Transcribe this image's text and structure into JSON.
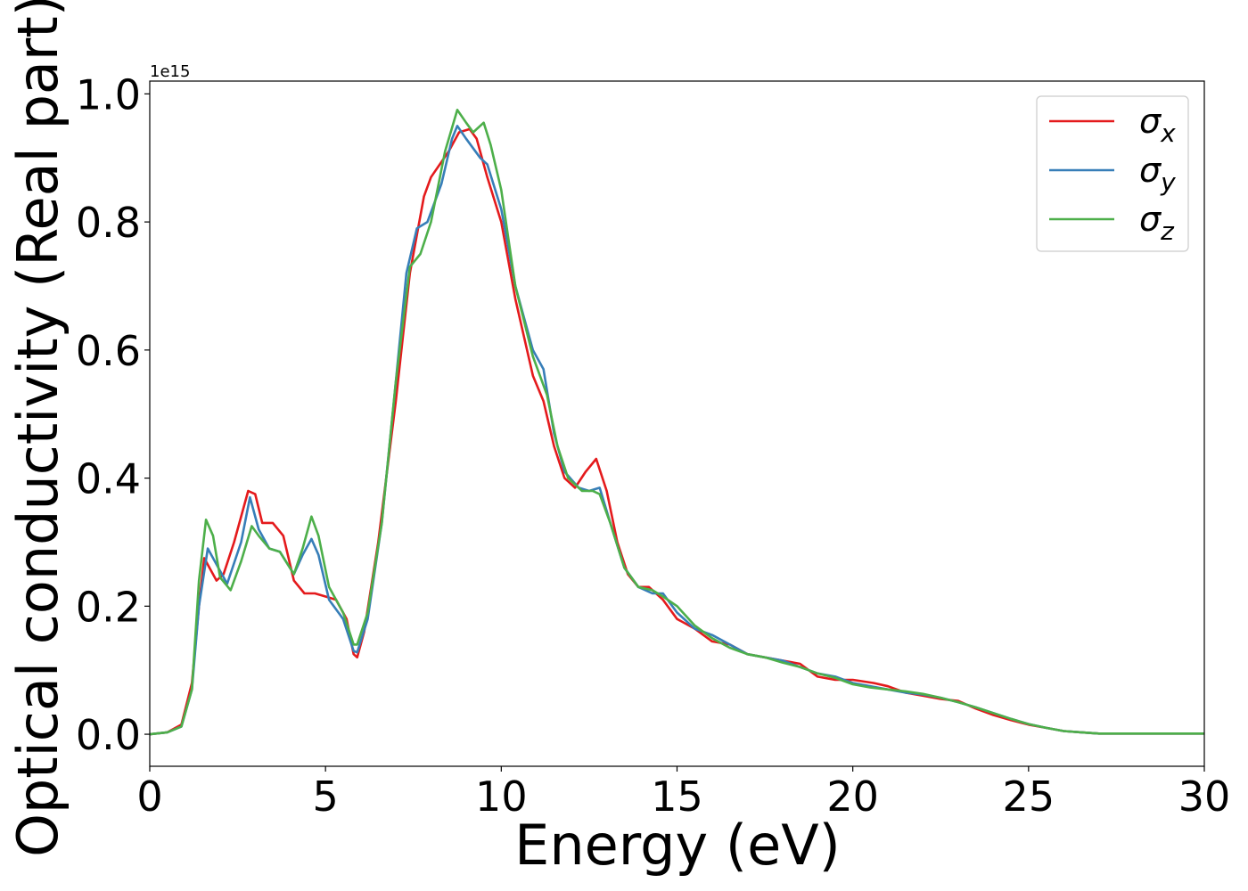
{
  "chart_data": {
    "type": "line",
    "xlabel": "Energy (eV)",
    "ylabel": "Optical conductivity (Real part)",
    "y_offset_label": "1e15",
    "xlim": [
      0,
      30
    ],
    "ylim": [
      -0.05,
      1.02
    ],
    "xticks": [
      "0",
      "5",
      "10",
      "15",
      "20",
      "25",
      "30"
    ],
    "yticks": [
      "0.0",
      "0.2",
      "0.4",
      "0.6",
      "0.8",
      "1.0"
    ],
    "grid": false,
    "legend_position": "top-right",
    "series": [
      {
        "name": "σx",
        "symbol": "σ",
        "subscript": "x",
        "color": "#e41a1c",
        "points": [
          [
            0,
            0
          ],
          [
            0.5,
            0.003
          ],
          [
            0.9,
            0.015
          ],
          [
            1.2,
            0.08
          ],
          [
            1.4,
            0.2
          ],
          [
            1.55,
            0.275
          ],
          [
            1.7,
            0.26
          ],
          [
            1.9,
            0.24
          ],
          [
            2.1,
            0.25
          ],
          [
            2.4,
            0.3
          ],
          [
            2.8,
            0.38
          ],
          [
            3.0,
            0.375
          ],
          [
            3.2,
            0.33
          ],
          [
            3.5,
            0.33
          ],
          [
            3.8,
            0.31
          ],
          [
            4.1,
            0.24
          ],
          [
            4.4,
            0.22
          ],
          [
            4.7,
            0.22
          ],
          [
            5.0,
            0.215
          ],
          [
            5.3,
            0.21
          ],
          [
            5.6,
            0.18
          ],
          [
            5.8,
            0.125
          ],
          [
            5.9,
            0.12
          ],
          [
            6.1,
            0.16
          ],
          [
            6.5,
            0.3
          ],
          [
            7.0,
            0.52
          ],
          [
            7.4,
            0.72
          ],
          [
            7.8,
            0.84
          ],
          [
            8.0,
            0.87
          ],
          [
            8.5,
            0.91
          ],
          [
            8.8,
            0.94
          ],
          [
            9.1,
            0.945
          ],
          [
            9.3,
            0.93
          ],
          [
            9.6,
            0.87
          ],
          [
            10.0,
            0.8
          ],
          [
            10.4,
            0.68
          ],
          [
            10.9,
            0.56
          ],
          [
            11.2,
            0.52
          ],
          [
            11.5,
            0.45
          ],
          [
            11.8,
            0.4
          ],
          [
            12.1,
            0.385
          ],
          [
            12.4,
            0.41
          ],
          [
            12.7,
            0.43
          ],
          [
            13.0,
            0.38
          ],
          [
            13.3,
            0.3
          ],
          [
            13.6,
            0.25
          ],
          [
            13.9,
            0.23
          ],
          [
            14.2,
            0.23
          ],
          [
            14.6,
            0.21
          ],
          [
            15.0,
            0.18
          ],
          [
            15.5,
            0.165
          ],
          [
            16.0,
            0.145
          ],
          [
            16.5,
            0.14
          ],
          [
            17.0,
            0.125
          ],
          [
            17.5,
            0.12
          ],
          [
            18.0,
            0.115
          ],
          [
            18.5,
            0.11
          ],
          [
            19.0,
            0.09
          ],
          [
            19.5,
            0.085
          ],
          [
            20.0,
            0.085
          ],
          [
            20.6,
            0.08
          ],
          [
            21.0,
            0.075
          ],
          [
            21.5,
            0.065
          ],
          [
            22.0,
            0.06
          ],
          [
            22.5,
            0.055
          ],
          [
            23.0,
            0.052
          ],
          [
            23.5,
            0.04
          ],
          [
            24.0,
            0.03
          ],
          [
            24.5,
            0.022
          ],
          [
            25.0,
            0.015
          ],
          [
            25.5,
            0.01
          ],
          [
            26.0,
            0.005
          ],
          [
            26.5,
            0.003
          ],
          [
            27.0,
            0.001
          ],
          [
            28.0,
            0.001
          ],
          [
            30.0,
            0.001
          ]
        ]
      },
      {
        "name": "σy",
        "symbol": "σ",
        "subscript": "y",
        "color": "#377eb8",
        "points": [
          [
            0,
            0
          ],
          [
            0.5,
            0.003
          ],
          [
            0.9,
            0.012
          ],
          [
            1.2,
            0.07
          ],
          [
            1.4,
            0.2
          ],
          [
            1.65,
            0.29
          ],
          [
            1.85,
            0.27
          ],
          [
            2.2,
            0.235
          ],
          [
            2.6,
            0.3
          ],
          [
            2.85,
            0.37
          ],
          [
            3.1,
            0.32
          ],
          [
            3.4,
            0.29
          ],
          [
            3.7,
            0.285
          ],
          [
            4.1,
            0.25
          ],
          [
            4.35,
            0.28
          ],
          [
            4.6,
            0.305
          ],
          [
            4.8,
            0.28
          ],
          [
            5.1,
            0.21
          ],
          [
            5.5,
            0.18
          ],
          [
            5.8,
            0.13
          ],
          [
            5.9,
            0.128
          ],
          [
            6.2,
            0.18
          ],
          [
            6.6,
            0.33
          ],
          [
            7.0,
            0.55
          ],
          [
            7.3,
            0.72
          ],
          [
            7.6,
            0.79
          ],
          [
            7.9,
            0.8
          ],
          [
            8.3,
            0.86
          ],
          [
            8.6,
            0.93
          ],
          [
            8.75,
            0.95
          ],
          [
            9.0,
            0.93
          ],
          [
            9.4,
            0.9
          ],
          [
            9.6,
            0.89
          ],
          [
            10.0,
            0.82
          ],
          [
            10.4,
            0.7
          ],
          [
            10.9,
            0.6
          ],
          [
            11.2,
            0.57
          ],
          [
            11.5,
            0.47
          ],
          [
            11.8,
            0.41
          ],
          [
            12.2,
            0.385
          ],
          [
            12.5,
            0.38
          ],
          [
            12.8,
            0.385
          ],
          [
            13.1,
            0.33
          ],
          [
            13.5,
            0.26
          ],
          [
            13.9,
            0.23
          ],
          [
            14.3,
            0.22
          ],
          [
            14.6,
            0.22
          ],
          [
            15.0,
            0.19
          ],
          [
            15.5,
            0.165
          ],
          [
            16.0,
            0.155
          ],
          [
            16.5,
            0.14
          ],
          [
            17.0,
            0.125
          ],
          [
            17.5,
            0.12
          ],
          [
            18.0,
            0.115
          ],
          [
            18.5,
            0.105
          ],
          [
            19.0,
            0.095
          ],
          [
            19.5,
            0.09
          ],
          [
            20.0,
            0.08
          ],
          [
            20.5,
            0.075
          ],
          [
            21.0,
            0.07
          ],
          [
            21.5,
            0.065
          ],
          [
            22.0,
            0.062
          ],
          [
            22.5,
            0.057
          ],
          [
            23.0,
            0.05
          ],
          [
            23.5,
            0.042
          ],
          [
            24.0,
            0.033
          ],
          [
            24.5,
            0.024
          ],
          [
            25.0,
            0.016
          ],
          [
            25.5,
            0.01
          ],
          [
            26.0,
            0.005
          ],
          [
            26.5,
            0.003
          ],
          [
            27.0,
            0.001
          ],
          [
            28.0,
            0.001
          ],
          [
            30.0,
            0.001
          ]
        ]
      },
      {
        "name": "σz",
        "symbol": "σ",
        "subscript": "z",
        "color": "#4daf4a",
        "points": [
          [
            0,
            0
          ],
          [
            0.5,
            0.003
          ],
          [
            0.9,
            0.012
          ],
          [
            1.2,
            0.07
          ],
          [
            1.4,
            0.24
          ],
          [
            1.6,
            0.335
          ],
          [
            1.8,
            0.31
          ],
          [
            2.0,
            0.245
          ],
          [
            2.3,
            0.225
          ],
          [
            2.6,
            0.27
          ],
          [
            2.9,
            0.325
          ],
          [
            3.1,
            0.31
          ],
          [
            3.4,
            0.29
          ],
          [
            3.7,
            0.285
          ],
          [
            4.1,
            0.25
          ],
          [
            4.35,
            0.29
          ],
          [
            4.6,
            0.34
          ],
          [
            4.8,
            0.31
          ],
          [
            5.1,
            0.23
          ],
          [
            5.5,
            0.19
          ],
          [
            5.8,
            0.14
          ],
          [
            5.9,
            0.14
          ],
          [
            6.2,
            0.19
          ],
          [
            6.6,
            0.33
          ],
          [
            7.0,
            0.55
          ],
          [
            7.4,
            0.73
          ],
          [
            7.7,
            0.75
          ],
          [
            8.0,
            0.8
          ],
          [
            8.4,
            0.91
          ],
          [
            8.75,
            0.975
          ],
          [
            9.0,
            0.955
          ],
          [
            9.2,
            0.94
          ],
          [
            9.5,
            0.955
          ],
          [
            9.7,
            0.92
          ],
          [
            10.0,
            0.85
          ],
          [
            10.4,
            0.7
          ],
          [
            10.9,
            0.59
          ],
          [
            11.3,
            0.53
          ],
          [
            11.6,
            0.45
          ],
          [
            11.9,
            0.4
          ],
          [
            12.3,
            0.38
          ],
          [
            12.6,
            0.38
          ],
          [
            12.8,
            0.375
          ],
          [
            13.1,
            0.33
          ],
          [
            13.5,
            0.26
          ],
          [
            13.9,
            0.23
          ],
          [
            14.3,
            0.225
          ],
          [
            14.6,
            0.215
          ],
          [
            15.0,
            0.2
          ],
          [
            15.5,
            0.17
          ],
          [
            16.0,
            0.15
          ],
          [
            16.5,
            0.135
          ],
          [
            17.0,
            0.125
          ],
          [
            17.5,
            0.12
          ],
          [
            18.0,
            0.112
          ],
          [
            18.5,
            0.105
          ],
          [
            19.0,
            0.095
          ],
          [
            19.5,
            0.088
          ],
          [
            20.0,
            0.078
          ],
          [
            20.5,
            0.073
          ],
          [
            21.0,
            0.07
          ],
          [
            21.5,
            0.067
          ],
          [
            22.0,
            0.063
          ],
          [
            22.5,
            0.057
          ],
          [
            23.0,
            0.05
          ],
          [
            23.5,
            0.042
          ],
          [
            24.0,
            0.033
          ],
          [
            24.5,
            0.024
          ],
          [
            25.0,
            0.016
          ],
          [
            25.5,
            0.01
          ],
          [
            26.0,
            0.005
          ],
          [
            26.5,
            0.003
          ],
          [
            27.0,
            0.001
          ],
          [
            28.0,
            0.001
          ],
          [
            30.0,
            0.001
          ]
        ]
      }
    ]
  }
}
